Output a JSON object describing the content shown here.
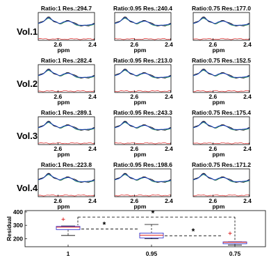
{
  "chart_data": [
    {
      "type": "line",
      "xlabel": "ppm",
      "x_tick_labels": [
        "2.6",
        "2.4"
      ],
      "columns": [
        "1",
        "0.95",
        "0.75"
      ],
      "colors": {
        "measured": "#000000",
        "fit": "#1f3fbf",
        "fit_alt": "#2a9a4a",
        "residual": "#dd2222"
      },
      "rows": [
        {
          "label": "Vol.1",
          "panels": [
            {
              "title": "Ratio:1 Res.:294.7",
              "ratio": 1,
              "residual": 294.7
            },
            {
              "title": "Ratio:0.95 Res.:240.4",
              "ratio": 0.95,
              "residual": 240.4
            },
            {
              "title": "Ratio:0.75 Res.:177.0",
              "ratio": 0.75,
              "residual": 177.0
            }
          ]
        },
        {
          "label": "Vol.2",
          "panels": [
            {
              "title": "Ratio:1 Res.:282.4",
              "ratio": 1,
              "residual": 282.4
            },
            {
              "title": "Ratio:0.95 Res.:213.0",
              "ratio": 0.95,
              "residual": 213.0
            },
            {
              "title": "Ratio:0.75 Res.:152.5",
              "ratio": 0.75,
              "residual": 152.5
            }
          ]
        },
        {
          "label": "Vol.3",
          "panels": [
            {
              "title": "Ratio:1 Res.:289.1",
              "ratio": 1,
              "residual": 289.1
            },
            {
              "title": "Ratio:0.95 Res.:243.3",
              "ratio": 0.95,
              "residual": 243.3
            },
            {
              "title": "Ratio:0.75 Res.:175.4",
              "ratio": 0.75,
              "residual": 175.4
            }
          ]
        },
        {
          "label": "Vol.4",
          "panels": [
            {
              "title": "Ratio:1 Res.:223.8",
              "ratio": 1,
              "residual": 223.8
            },
            {
              "title": "Ratio:0.95 Res.:198.6",
              "ratio": 0.95,
              "residual": 198.6
            },
            {
              "title": "Ratio:0.75 Res.:171.2",
              "ratio": 0.75,
              "residual": 171.2
            }
          ]
        }
      ]
    },
    {
      "type": "box",
      "ylabel": "Residual",
      "categories": [
        "1",
        "0.95",
        "0.75"
      ],
      "y_ticks": [
        200,
        300,
        400
      ],
      "ylim": [
        140,
        410
      ],
      "colors": {
        "box": "#3333cc",
        "median": "#dd2222",
        "whisker": "#000000",
        "outlier": "#dd2222"
      },
      "boxes": [
        {
          "category": "1",
          "min": 224,
          "q1": 268,
          "median": 286,
          "q3": 292,
          "max": 295,
          "outliers": [
            345
          ]
        },
        {
          "category": "0.95",
          "min": 199,
          "q1": 206,
          "median": 226,
          "q3": 242,
          "max": 306,
          "outliers": []
        },
        {
          "category": "0.75",
          "min": 152,
          "q1": 162,
          "median": 173,
          "q3": 176,
          "max": 177,
          "outliers": [
            240
          ]
        }
      ],
      "significance": [
        {
          "pair": [
            "1",
            "0.95"
          ],
          "label": "*"
        },
        {
          "pair": [
            "0.95",
            "0.75"
          ],
          "label": "*"
        },
        {
          "pair": [
            "1",
            "0.75"
          ],
          "label": "*"
        }
      ]
    }
  ]
}
